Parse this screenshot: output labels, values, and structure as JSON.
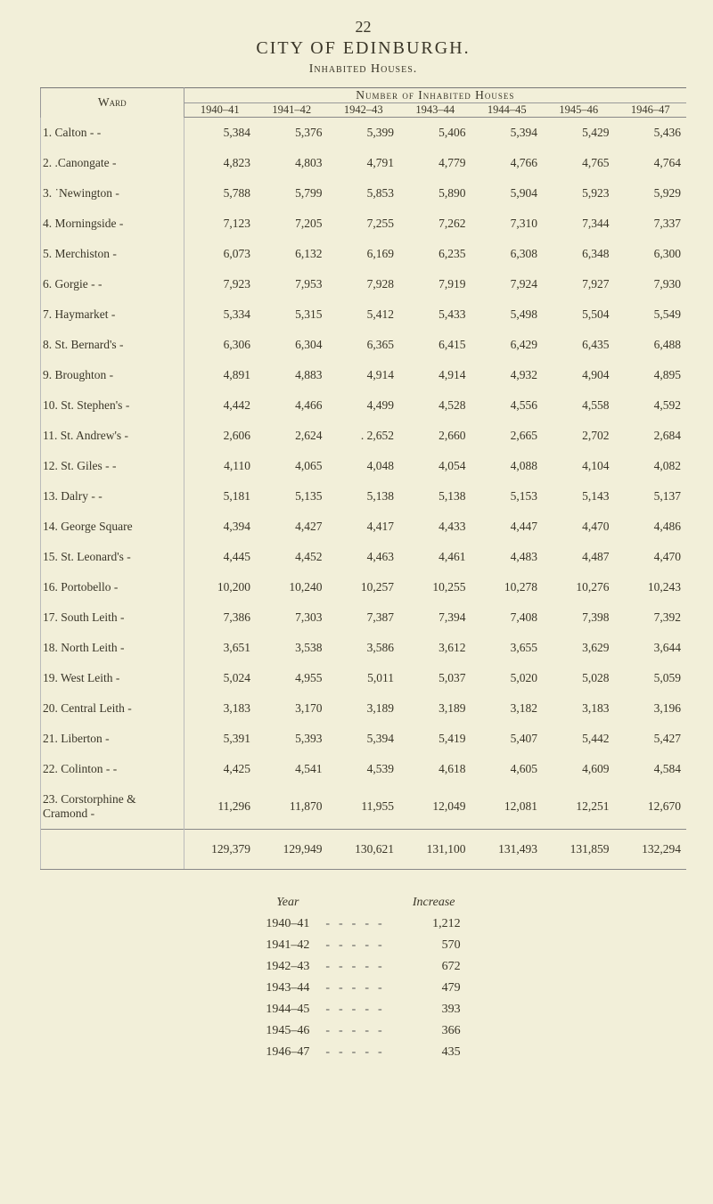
{
  "page_number": "22",
  "city_title": "CITY  OF  EDINBURGH.",
  "sub_title": "Inhabited Houses.",
  "ward_label": "Ward",
  "group_header": "Number of Inhabited Houses",
  "years": [
    "1940–41",
    "1941–42",
    "1942–43",
    "1943–44",
    "1944–45",
    "1945–46",
    "1946–47"
  ],
  "rows": [
    {
      "name": "1. Calton   -      -",
      "v": [
        "5,384",
        "5,376",
        "5,399",
        "5,406",
        "5,394",
        "5,429",
        "5,436"
      ]
    },
    {
      "name": "2. .Canongate    -",
      "v": [
        "4,823",
        "4,803",
        "4,791",
        "4,779",
        "4,766",
        "4,765",
        "4,764"
      ]
    },
    {
      "name": "3. ˙Newington    -",
      "v": [
        "5,788",
        "5,799",
        "5,853",
        "5,890",
        "5,904",
        "5,923",
        "5,929"
      ]
    },
    {
      "name": "4. Morningside  -",
      "v": [
        "7,123",
        "7,205",
        "7,255",
        "7,262",
        "7,310",
        "7,344",
        "7,337"
      ]
    },
    {
      "name": "5. Merchiston    -",
      "v": [
        "6,073",
        "6,132",
        "6,169",
        "6,235",
        "6,308",
        "6,348",
        "6,300"
      ]
    },
    {
      "name": "6. Gorgie   -      -",
      "v": [
        "7,923",
        "7,953",
        "7,928",
        "7,919",
        "7,924",
        "7,927",
        "7,930"
      ]
    },
    {
      "name": "7. Haymarket   -",
      "v": [
        "5,334",
        "5,315",
        "5,412",
        "5,433",
        "5,498",
        "5,504",
        "5,549"
      ]
    },
    {
      "name": "8. St. Bernard's  -",
      "v": [
        "6,306",
        "6,304",
        "6,365",
        "6,415",
        "6,429",
        "6,435",
        "6,488"
      ]
    },
    {
      "name": "9. Broughton     -",
      "v": [
        "4,891",
        "4,883",
        "4,914",
        "4,914",
        "4,932",
        "4,904",
        "4,895"
      ]
    },
    {
      "name": "10. St. Stephen's  -",
      "v": [
        "4,442",
        "4,466",
        "4,499",
        "4,528",
        "4,556",
        "4,558",
        "4,592"
      ]
    },
    {
      "name": "11. St. Andrew's -",
      "v": [
        "2,606",
        "2,624",
        ". 2,652",
        "2,660",
        "2,665",
        "2,702",
        "2,684"
      ]
    },
    {
      "name": "12. St. Giles -     -",
      "v": [
        "4,110",
        "4,065",
        "4,048",
        "4,054",
        "4,088",
        "4,104",
        "4,082"
      ]
    },
    {
      "name": "13. Dalry    -      -",
      "v": [
        "5,181",
        "5,135",
        "5,138",
        "5,138",
        "5,153",
        "5,143",
        "5,137"
      ]
    },
    {
      "name": "14. George Square",
      "v": [
        "4,394",
        "4,427",
        "4,417",
        "4,433",
        "4,447",
        "4,470",
        "4,486"
      ]
    },
    {
      "name": "15. St. Leonard's -",
      "v": [
        "4,445",
        "4,452",
        "4,463",
        "4,461",
        "4,483",
        "4,487",
        "4,470"
      ]
    },
    {
      "name": "16. Portobello      -",
      "v": [
        "10,200",
        "10,240",
        "10,257",
        "10,255",
        "10,278",
        "10,276",
        "10,243"
      ]
    },
    {
      "name": "17. South Leith   -",
      "v": [
        "7,386",
        "7,303",
        "7,387",
        "7,394",
        "7,408",
        "7,398",
        "7,392"
      ]
    },
    {
      "name": "18. North Leith   -",
      "v": [
        "3,651",
        "3,538",
        "3,586",
        "3,612",
        "3,655",
        "3,629",
        "3,644"
      ]
    },
    {
      "name": "19. West Leith    -",
      "v": [
        "5,024",
        "4,955",
        "5,011",
        "5,037",
        "5,020",
        "5,028",
        "5,059"
      ]
    },
    {
      "name": "20. Central Leith -",
      "v": [
        "3,183",
        "3,170",
        "3,189",
        "3,189",
        "3,182",
        "3,183",
        "3,196"
      ]
    },
    {
      "name": "21. Liberton        -",
      "v": [
        "5,391",
        "5,393",
        "5,394",
        "5,419",
        "5,407",
        "5,442",
        "5,427"
      ]
    },
    {
      "name": "22. Colinton -      -",
      "v": [
        "4,425",
        "4,541",
        "4,539",
        "4,618",
        "4,605",
        "4,609",
        "4,584"
      ]
    },
    {
      "name": "23. Corstorphine &\n        Cramond   -",
      "v": [
        "11,296",
        "11,870",
        "11,955",
        "12,049",
        "12,081",
        "12,251",
        "12,670"
      ]
    }
  ],
  "totals": [
    "129,379",
    "129,949",
    "130,621",
    "131,100",
    "131,493",
    "131,859",
    "132,294"
  ],
  "year_increase": {
    "year_label": "Year",
    "increase_label": "Increase",
    "rows": [
      {
        "year": "1940–41",
        "inc": "1,212"
      },
      {
        "year": "1941–42",
        "inc": "570"
      },
      {
        "year": "1942–43",
        "inc": "672"
      },
      {
        "year": "1943–44",
        "inc": "479"
      },
      {
        "year": "1944–45",
        "inc": "393"
      },
      {
        "year": "1945–46",
        "inc": "366"
      },
      {
        "year": "1946–47",
        "inc": "435"
      }
    ]
  },
  "colors": {
    "background": "#f2efd9",
    "text": "#3a3628",
    "rule": "#888"
  }
}
